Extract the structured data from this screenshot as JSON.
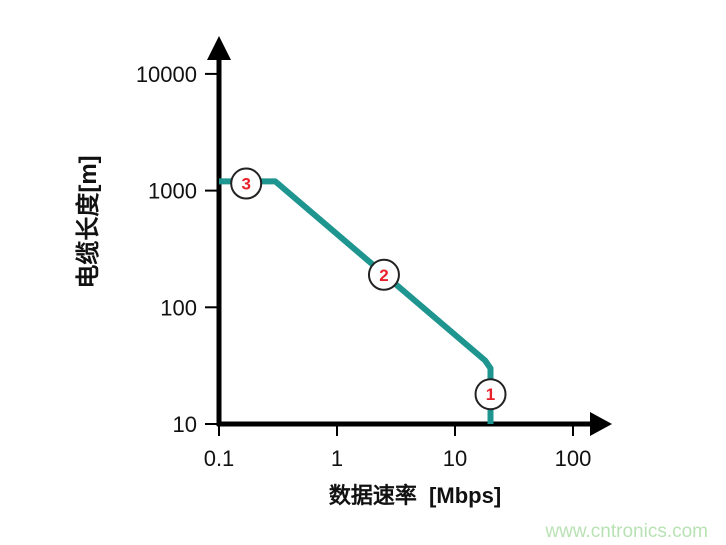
{
  "chart_data": {
    "type": "line",
    "title": "",
    "xlabel": "数据速率  [Mbps]",
    "ylabel": "电缆长度[m]",
    "x_scale": "log",
    "y_scale": "log",
    "xlim": [
      0.1,
      100
    ],
    "ylim": [
      10,
      10000
    ],
    "x_ticks": [
      0.1,
      1,
      10,
      100
    ],
    "x_tick_labels": [
      "0.1",
      "1",
      "10",
      "100"
    ],
    "y_ticks": [
      10,
      100,
      1000,
      10000
    ],
    "y_tick_labels": [
      "10",
      "100",
      "1000",
      "10000"
    ],
    "grid": false,
    "series": [
      {
        "x": [
          0.1,
          0.3,
          18,
          20,
          20
        ],
        "y": [
          1200,
          1200,
          35,
          30,
          10
        ],
        "color": "#1f9590"
      }
    ],
    "annotations": [
      {
        "label": "3",
        "x": 0.17,
        "y": 1150
      },
      {
        "label": "2",
        "x": 2.5,
        "y": 190
      },
      {
        "label": "1",
        "x": 20,
        "y": 18
      }
    ],
    "marker_text_color": "#e8202a"
  },
  "watermark": "www.cntronics.com"
}
